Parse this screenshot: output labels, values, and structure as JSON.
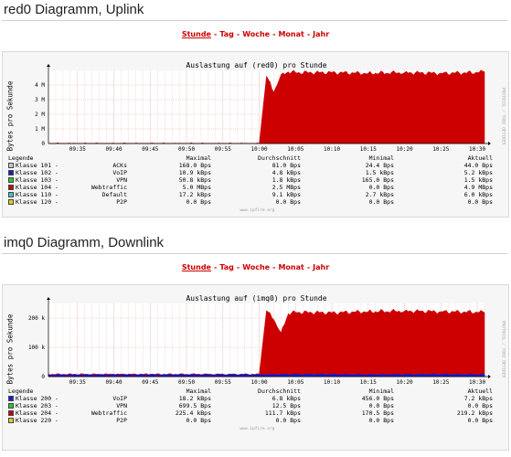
{
  "range_nav": [
    "Stunde",
    "Tag",
    "Woche",
    "Monat",
    "Jahr"
  ],
  "range_nav_active": 0,
  "uplink": {
    "section_title": "red0 Diagramm, Uplink",
    "graph_title": "Auslastung auf (red0) pro Stunde",
    "ylabel": "Bytes pro Sekunde",
    "side_note": "PROTOCOL / TOBI OETIKER",
    "footer": "www.ipfire.org",
    "legend_headers": {
      "label": "Legende",
      "max": "Maximal",
      "avg": "Durchschnitt",
      "min": "Minimal",
      "cur": "Aktuell"
    },
    "legend": [
      {
        "label": "Klasse 101 -",
        "name": "ACKs",
        "max": "168.0  Bps",
        "avg": "81.0  Bps",
        "min": "24.4  Bps",
        "cur": "44.0  Bps",
        "color": "#c8c8c8"
      },
      {
        "label": "Klasse 102 -",
        "name": "VoIP",
        "max": "10.9 kBps",
        "avg": "4.8 kBps",
        "min": "1.5 kBps",
        "cur": "5.2 kBps",
        "color": "#1a1acc"
      },
      {
        "label": "Klasse 103 -",
        "name": "VPN",
        "max": "50.8 kBps",
        "avg": "1.8 kBps",
        "min": "165.0  Bps",
        "cur": "1.5 kBps",
        "color": "#28c828"
      },
      {
        "label": "Klasse 104 -",
        "name": "Webtraffic",
        "max": "5.0 MBps",
        "avg": "2.5 MBps",
        "min": "0.0  Bps",
        "cur": "4.9 MBps",
        "color": "#cc0000"
      },
      {
        "label": "Klasse 110 -",
        "name": "Default",
        "max": "17.2 kBps",
        "avg": "9.1 kBps",
        "min": "2.7 kBps",
        "cur": "6.0 kBps",
        "color": "#3cc8c8"
      },
      {
        "label": "Klasse 120 -",
        "name": "P2P",
        "max": "0.0  Bps",
        "avg": "0.0  Bps",
        "min": "0.0  Bps",
        "cur": "0.0  Bps",
        "color": "#e6c81e"
      }
    ]
  },
  "downlink": {
    "section_title": "imq0 Diagramm, Downlink",
    "graph_title": "Auslastung auf (imq0) pro Stunde",
    "ylabel": "Bytes pro Sekunde",
    "side_note": "PROTOCOL / TOBI OETIKER",
    "footer": "www.ipfire.org",
    "legend_headers": {
      "label": "Legende",
      "max": "Maximal",
      "avg": "Durchschnitt",
      "min": "Minimal",
      "cur": "Aktuell"
    },
    "legend": [
      {
        "label": "Klasse 200 -",
        "name": "VoIP",
        "max": "18.2 kBps",
        "avg": "6.8 kBps",
        "min": "456.0  Bps",
        "cur": "7.2 kBps",
        "color": "#1a1acc"
      },
      {
        "label": "Klasse 203 -",
        "name": "VPN",
        "max": "699.5  Bps",
        "avg": "12.5  Bps",
        "min": "0.0  Bps",
        "cur": "0.0  Bps",
        "color": "#28c828"
      },
      {
        "label": "Klasse 204 -",
        "name": "Webtraffic",
        "max": "225.4 kBps",
        "avg": "111.7 kBps",
        "min": "170.5  Bps",
        "cur": "219.2 kBps",
        "color": "#cc0000"
      },
      {
        "label": "Klasse 220 -",
        "name": "P2P",
        "max": "0.0  Bps",
        "avg": "0.0  Bps",
        "min": "0.0  Bps",
        "cur": "0.0  Bps",
        "color": "#e6c81e"
      }
    ]
  },
  "chart_data": [
    {
      "type": "area",
      "title": "Auslastung auf (red0) pro Stunde",
      "xlabel": "",
      "ylabel": "Bytes pro Sekunde",
      "x_ticks": [
        "09:35",
        "09:40",
        "09:45",
        "09:50",
        "09:55",
        "10:00",
        "10:05",
        "10:10",
        "10:15",
        "10:20",
        "10:25",
        "10:30"
      ],
      "y_ticks": [
        "0",
        "1 M",
        "2 M",
        "3 M",
        "4 M"
      ],
      "ylim": [
        0,
        5000000
      ],
      "grid": true,
      "series": [
        {
          "name": "Klasse 104 - Webtraffic",
          "color": "#cc0000",
          "x": [
            "09:31",
            "10:00",
            "10:01",
            "10:02",
            "10:03",
            "10:04",
            "10:05",
            "10:10",
            "10:15",
            "10:20",
            "10:25",
            "10:30",
            "10:31"
          ],
          "values": [
            0,
            0,
            4600000,
            3500000,
            4700000,
            4900000,
            4850000,
            4850000,
            4800000,
            4850000,
            4800000,
            4850000,
            4900000
          ]
        }
      ]
    },
    {
      "type": "area",
      "title": "Auslastung auf (imq0) pro Stunde",
      "xlabel": "",
      "ylabel": "Bytes pro Sekunde",
      "x_ticks": [
        "09:35",
        "09:40",
        "09:45",
        "09:50",
        "09:55",
        "10:00",
        "10:05",
        "10:10",
        "10:15",
        "10:20",
        "10:25",
        "10:30"
      ],
      "y_ticks": [
        "0",
        "100 k",
        "200 k"
      ],
      "ylim": [
        0,
        250000
      ],
      "grid": true,
      "series": [
        {
          "name": "Klasse 204 - Webtraffic",
          "color": "#cc0000",
          "x": [
            "09:31",
            "09:45",
            "10:00",
            "10:01",
            "10:02",
            "10:03",
            "10:04",
            "10:05",
            "10:10",
            "10:15",
            "10:20",
            "10:25",
            "10:30",
            "10:31"
          ],
          "values": [
            8000,
            8000,
            8000,
            225000,
            195000,
            150000,
            215000,
            220000,
            218000,
            222000,
            224000,
            222000,
            220000,
            219000
          ]
        },
        {
          "name": "Klasse 200 - VoIP",
          "color": "#1a1acc",
          "x": [
            "09:31",
            "10:00",
            "10:05",
            "10:15",
            "10:25",
            "10:31"
          ],
          "values": [
            6000,
            7000,
            8000,
            7000,
            8000,
            7200
          ]
        }
      ]
    }
  ]
}
